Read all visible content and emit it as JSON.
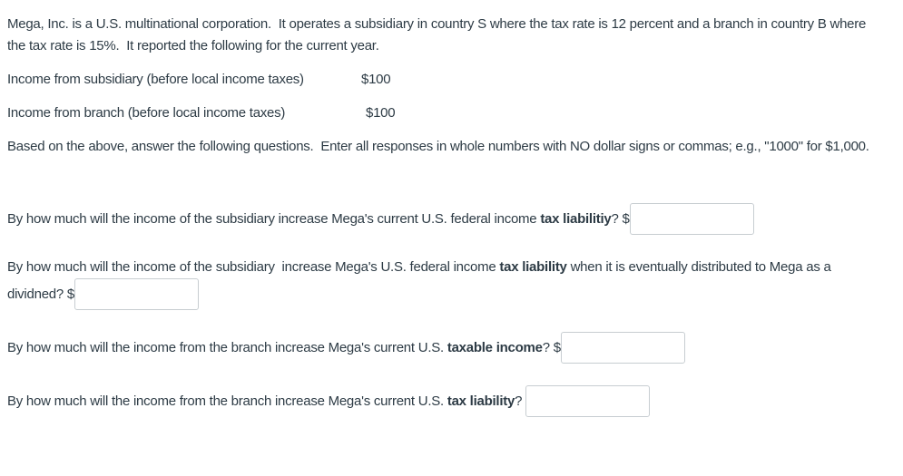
{
  "page": {
    "background_color": "#ffffff",
    "text_color": "#2d3b45",
    "input_border_color": "#c7cdd1"
  },
  "intro": {
    "text": "Mega, Inc. is a U.S. multinational corporation.  It operates a subsidiary in country S where the tax rate is 12 percent and a branch in country B where the tax rate is 15%.  It reported the following for the current year."
  },
  "income_rows": [
    {
      "label": "Income from subsidiary (before local income taxes)",
      "value": "$100"
    },
    {
      "label": "Income from branch (before local income taxes)",
      "value": "$100"
    }
  ],
  "instructions": {
    "text": "Based on the above, answer the following questions.  Enter all responses in whole numbers with NO dollar signs or commas; e.g., \"1000\" for $1,000."
  },
  "questions": [
    {
      "pre": "By how much will the income of the subsidiary increase Mega's current U.S. federal income ",
      "bold": "tax liabilitiy",
      "post": "? $",
      "input_value": ""
    },
    {
      "pre": "By how much will the income of the subsidiary  increase Mega's U.S. federal income ",
      "bold": "tax liability",
      "post": " when it is eventually distributed to Mega as a dividned? $",
      "input_value": ""
    },
    {
      "pre": "By how much will the income from the branch increase Mega's current U.S. ",
      "bold": "taxable income",
      "post": "? $",
      "input_value": ""
    },
    {
      "pre": "By how much will the income from the branch increase Mega's current U.S. ",
      "bold": "tax liability",
      "post": "? ",
      "input_value": ""
    }
  ]
}
